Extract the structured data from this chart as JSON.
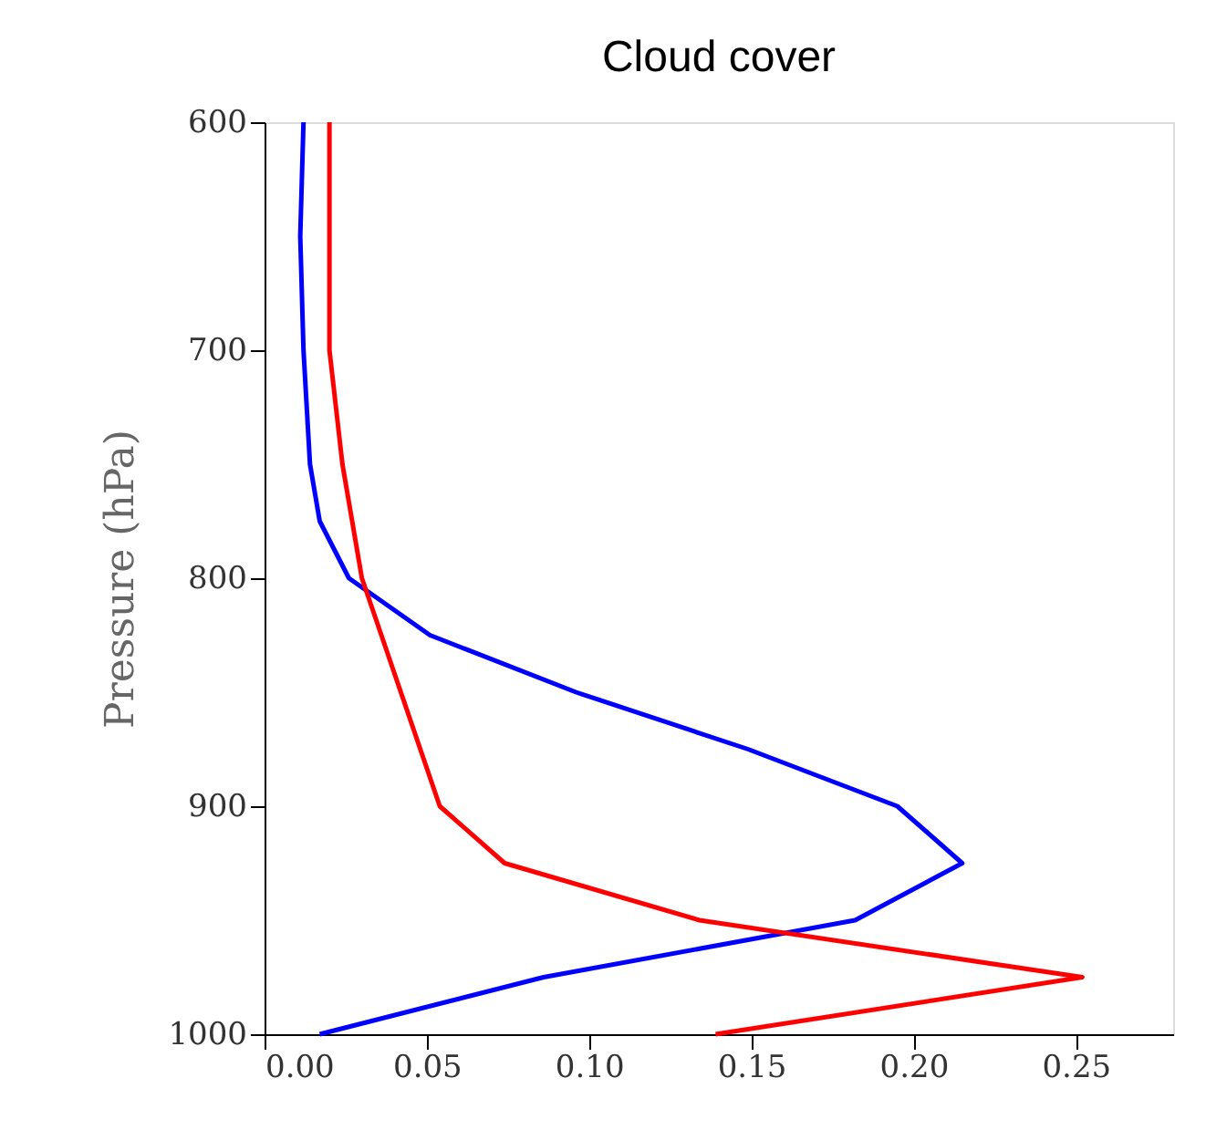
{
  "chart_data": {
    "type": "line",
    "orientation": "horizontal",
    "title": "Cloud cover",
    "ylabel": "Pressure (hPa)",
    "xlim": [
      0,
      0.28
    ],
    "ylim": [
      1000,
      600
    ],
    "xticks": [
      {
        "value": 0,
        "label": "0.00"
      },
      {
        "value": 0.05,
        "label": "0.05"
      },
      {
        "value": 0.1,
        "label": "0.10"
      },
      {
        "value": 0.15,
        "label": "0.15"
      },
      {
        "value": 0.2,
        "label": "0.20"
      },
      {
        "value": 0.25,
        "label": "0.25"
      }
    ],
    "yticks": [
      600,
      700,
      800,
      900,
      1000
    ],
    "grid": false,
    "marker": "none",
    "line_style": "solid",
    "series": [
      {
        "color": "#0000ff",
        "x": [
          600,
          650,
          700,
          750,
          775,
          800,
          825,
          850,
          875,
          900,
          925,
          950,
          975,
          1000
        ],
        "values": [
          0.012,
          0.011,
          0.012,
          0.014,
          0.017,
          0.026,
          0.051,
          0.096,
          0.149,
          0.195,
          0.215,
          0.182,
          0.086,
          0.017
        ]
      },
      {
        "color": "#ff0000",
        "x": [
          600,
          650,
          700,
          750,
          800,
          825,
          900,
          925,
          950,
          975,
          1000
        ],
        "values": [
          0.02,
          0.02,
          0.02,
          0.024,
          0.03,
          0.036,
          0.054,
          0.074,
          0.134,
          0.252,
          0.139
        ]
      }
    ]
  }
}
